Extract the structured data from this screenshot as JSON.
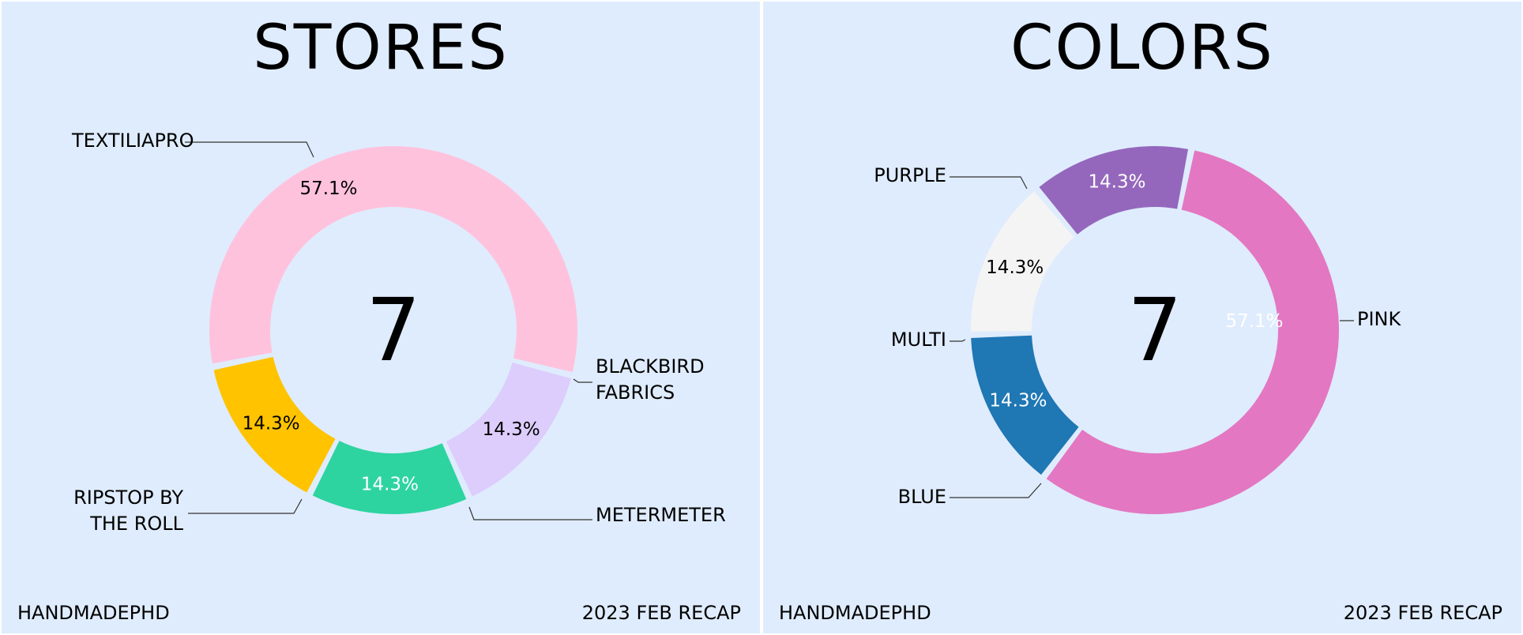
{
  "footer": {
    "brand": "HANDMADEPHD",
    "recap": "2023 FEB RECAP"
  },
  "chart_data": [
    {
      "type": "pie",
      "title": "STORES",
      "total": "7",
      "slices": [
        {
          "label": "TEXTILIAPRO",
          "value": 4,
          "pct": "57.1%",
          "color": "#ffc2dd",
          "text_color": "#000000"
        },
        {
          "label": "BLACKBIRD FABRICS",
          "value": 1,
          "pct": "14.3%",
          "color": "#dccdfc",
          "text_color": "#000000"
        },
        {
          "label": "METERMETER",
          "value": 1,
          "pct": "14.3%",
          "color": "#2dd4a0",
          "text_color": "#ffffff"
        },
        {
          "label": "RIPSTOP BY THE ROLL",
          "value": 1,
          "pct": "14.3%",
          "color": "#ffc300",
          "text_color": "#000000"
        }
      ]
    },
    {
      "type": "pie",
      "title": "COLORS",
      "total": "7",
      "slices": [
        {
          "label": "PINK",
          "value": 4,
          "pct": "57.1%",
          "color": "#e377c2",
          "text_color": "#ffffff"
        },
        {
          "label": "BLUE",
          "value": 1,
          "pct": "14.3%",
          "color": "#1f77b4",
          "text_color": "#ffffff"
        },
        {
          "label": "MULTI",
          "value": 1,
          "pct": "14.3%",
          "color": "#f4f4f4",
          "text_color": "#000000"
        },
        {
          "label": "PURPLE",
          "value": 1,
          "pct": "14.3%",
          "color": "#9467bd",
          "text_color": "#ffffff"
        }
      ]
    }
  ]
}
